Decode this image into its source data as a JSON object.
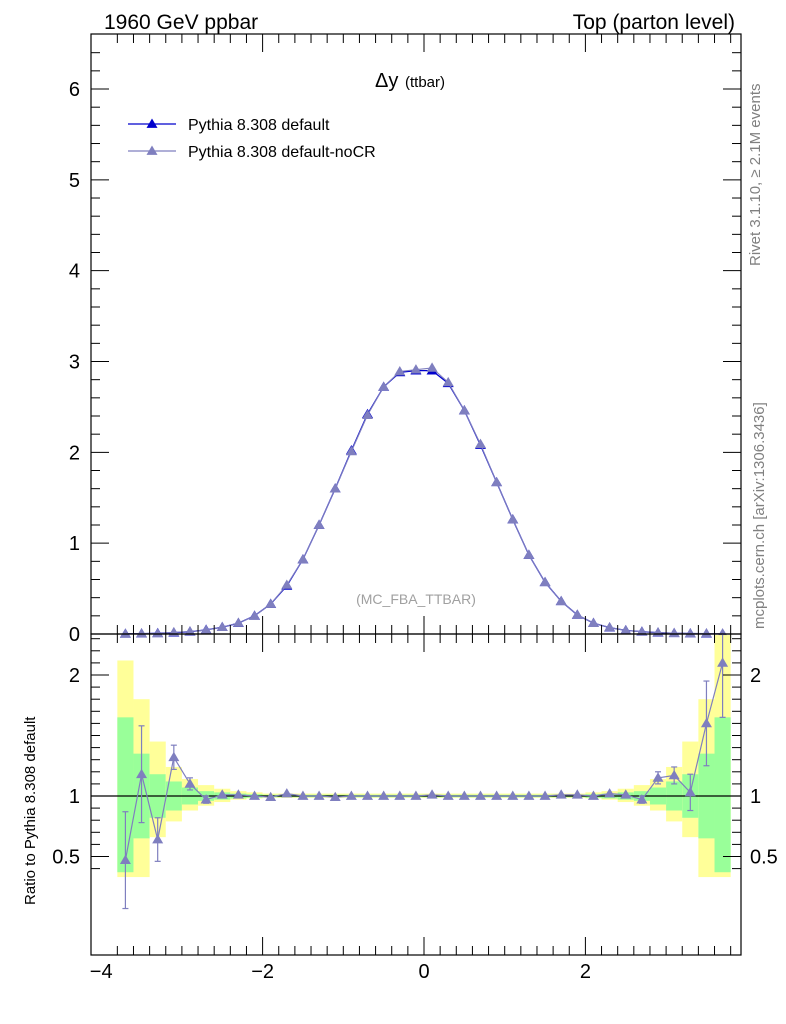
{
  "header": {
    "left": "1960 GeV ppbar",
    "right": "Top (parton level)"
  },
  "side": {
    "rivet": "Rivet 3.1.10, ≥ 2.1M events",
    "site": "mcplots.cern.ch [arXiv:1306.3436]"
  },
  "main_plot": {
    "title_symbol": "Δy",
    "title_sub": "(ttbar)",
    "analysis": "(MC_FBA_TTBAR)"
  },
  "ratio_plot": {
    "ylabel": "Ratio to Pythia 8.308 default"
  },
  "colors": {
    "default": "#0000cc",
    "nocr": "#7f7fbf",
    "band_inner": "#99ff99",
    "band_outer": "#ffff99"
  },
  "chart_data": [
    {
      "type": "line",
      "xlim": [
        -3.95,
        3.95
      ],
      "ylim": [
        0,
        6.6
      ],
      "yticks": [
        "0",
        "1",
        "2",
        "3",
        "4",
        "5",
        "6"
      ],
      "legend_placement": "top-left",
      "series": [
        {
          "name": "Pythia 8.308 default",
          "color": "#0000cc",
          "marker": "filled-triangle",
          "x": [
            -3.7,
            -3.5,
            -3.3,
            -3.1,
            -2.9,
            -2.7,
            -2.5,
            -2.3,
            -2.1,
            -1.9,
            -1.7,
            -1.5,
            -1.3,
            -1.1,
            -0.9,
            -0.7,
            -0.5,
            -0.3,
            -0.1,
            0.1,
            0.3,
            0.5,
            0.7,
            0.9,
            1.1,
            1.3,
            1.5,
            1.7,
            1.9,
            2.1,
            2.3,
            2.5,
            2.7,
            2.9,
            3.1,
            3.3,
            3.5,
            3.7
          ],
          "y": [
            0.002,
            0.004,
            0.008,
            0.014,
            0.025,
            0.045,
            0.075,
            0.12,
            0.2,
            0.33,
            0.53,
            0.82,
            1.2,
            1.6,
            2.02,
            2.42,
            2.72,
            2.88,
            2.9,
            2.9,
            2.76,
            2.46,
            2.08,
            1.67,
            1.26,
            0.87,
            0.57,
            0.36,
            0.21,
            0.12,
            0.07,
            0.04,
            0.025,
            0.014,
            0.008,
            0.005,
            0.003,
            0.002
          ]
        },
        {
          "name": "Pythia 8.308 default-noCR",
          "color": "#7f7fbf",
          "marker": "filled-triangle",
          "x": [
            -3.7,
            -3.5,
            -3.3,
            -3.1,
            -2.9,
            -2.7,
            -2.5,
            -2.3,
            -2.1,
            -1.9,
            -1.7,
            -1.5,
            -1.3,
            -1.1,
            -0.9,
            -0.7,
            -0.5,
            -0.3,
            -0.1,
            0.1,
            0.3,
            0.5,
            0.7,
            0.9,
            1.1,
            1.3,
            1.5,
            1.7,
            1.9,
            2.1,
            2.3,
            2.5,
            2.7,
            2.9,
            3.1,
            3.3,
            3.5,
            3.7
          ],
          "y": [
            0.001,
            0.005,
            0.006,
            0.018,
            0.027,
            0.043,
            0.076,
            0.121,
            0.198,
            0.33,
            0.54,
            0.82,
            1.2,
            1.6,
            2.01,
            2.41,
            2.72,
            2.89,
            2.91,
            2.93,
            2.77,
            2.46,
            2.09,
            1.67,
            1.26,
            0.87,
            0.57,
            0.36,
            0.21,
            0.12,
            0.072,
            0.04,
            0.024,
            0.016,
            0.009,
            0.005,
            0.005,
            0.004
          ]
        }
      ]
    },
    {
      "type": "line",
      "xlim": [
        -3.95,
        3.95
      ],
      "ylim": [
        0.33,
        2.33
      ],
      "xticks": [
        "−4",
        "−2",
        "0",
        "2"
      ],
      "yticks": [
        "0.5",
        "1",
        "2"
      ],
      "reference_line": 1,
      "bands": {
        "edges": [
          -3.8,
          -3.6,
          -3.4,
          -3.2,
          -3.0,
          -2.8,
          -2.6,
          -2.4,
          -2.2,
          -2.0,
          2.0,
          2.2,
          2.4,
          2.6,
          2.8,
          3.0,
          3.2,
          3.4,
          3.6,
          3.8
        ],
        "inner": [
          [
            0.37,
            1.65
          ],
          [
            0.65,
            1.35
          ],
          [
            0.82,
            1.18
          ],
          [
            0.88,
            1.12
          ],
          [
            0.93,
            1.07
          ],
          [
            0.96,
            1.04
          ],
          [
            0.97,
            1.03
          ],
          [
            0.98,
            1.02
          ],
          [
            0.985,
            1.015
          ],
          [
            0.99,
            1.01
          ],
          [
            0.985,
            1.015
          ],
          [
            0.98,
            1.02
          ],
          [
            0.97,
            1.03
          ],
          [
            0.96,
            1.04
          ],
          [
            0.93,
            1.07
          ],
          [
            0.88,
            1.12
          ],
          [
            0.82,
            1.18
          ],
          [
            0.65,
            1.35
          ],
          [
            0.37,
            1.65
          ]
        ],
        "outer": [
          [
            0.33,
            2.12
          ],
          [
            0.33,
            1.8
          ],
          [
            0.66,
            1.45
          ],
          [
            0.79,
            1.24
          ],
          [
            0.88,
            1.14
          ],
          [
            0.92,
            1.09
          ],
          [
            0.95,
            1.06
          ],
          [
            0.97,
            1.04
          ],
          [
            0.98,
            1.03
          ],
          [
            0.985,
            1.02
          ],
          [
            0.98,
            1.03
          ],
          [
            0.97,
            1.04
          ],
          [
            0.95,
            1.06
          ],
          [
            0.92,
            1.09
          ],
          [
            0.88,
            1.14
          ],
          [
            0.79,
            1.24
          ],
          [
            0.66,
            1.45
          ],
          [
            0.33,
            1.8
          ],
          [
            0.33,
            2.33
          ]
        ]
      },
      "series": [
        {
          "name": "Pythia 8.308 default-noCR",
          "color": "#7f7fbf",
          "x": [
            -3.7,
            -3.5,
            -3.3,
            -3.1,
            -2.9,
            -2.7,
            -2.5,
            -2.3,
            -2.1,
            -1.9,
            -1.7,
            -1.5,
            -1.3,
            -1.1,
            -0.9,
            -0.7,
            -0.5,
            -0.3,
            -0.1,
            0.1,
            0.3,
            0.5,
            0.7,
            0.9,
            1.1,
            1.3,
            1.5,
            1.7,
            1.9,
            2.1,
            2.3,
            2.5,
            2.7,
            2.9,
            3.1,
            3.3,
            3.5,
            3.7
          ],
          "y": [
            0.47,
            1.18,
            0.64,
            1.32,
            1.1,
            0.97,
            1.01,
            1.01,
            1.0,
            0.99,
            1.02,
            1.0,
            1.0,
            0.99,
            1.0,
            1.0,
            1.0,
            1.0,
            1.0,
            1.01,
            1.0,
            1.0,
            1.0,
            1.0,
            1.0,
            1.0,
            1.0,
            1.01,
            1.01,
            1.0,
            1.02,
            1.01,
            0.97,
            1.15,
            1.17,
            1.03,
            1.6,
            2.1
          ],
          "yerr": [
            0.4,
            0.4,
            0.18,
            0.1,
            0.05,
            0.03,
            0.02,
            0.01,
            0.01,
            0.01,
            0.01,
            0.005,
            0.005,
            0.005,
            0.005,
            0.005,
            0.005,
            0.005,
            0.005,
            0.005,
            0.005,
            0.005,
            0.005,
            0.005,
            0.005,
            0.005,
            0.005,
            0.01,
            0.01,
            0.01,
            0.01,
            0.02,
            0.03,
            0.05,
            0.07,
            0.15,
            0.35,
            0.45
          ]
        }
      ]
    }
  ]
}
